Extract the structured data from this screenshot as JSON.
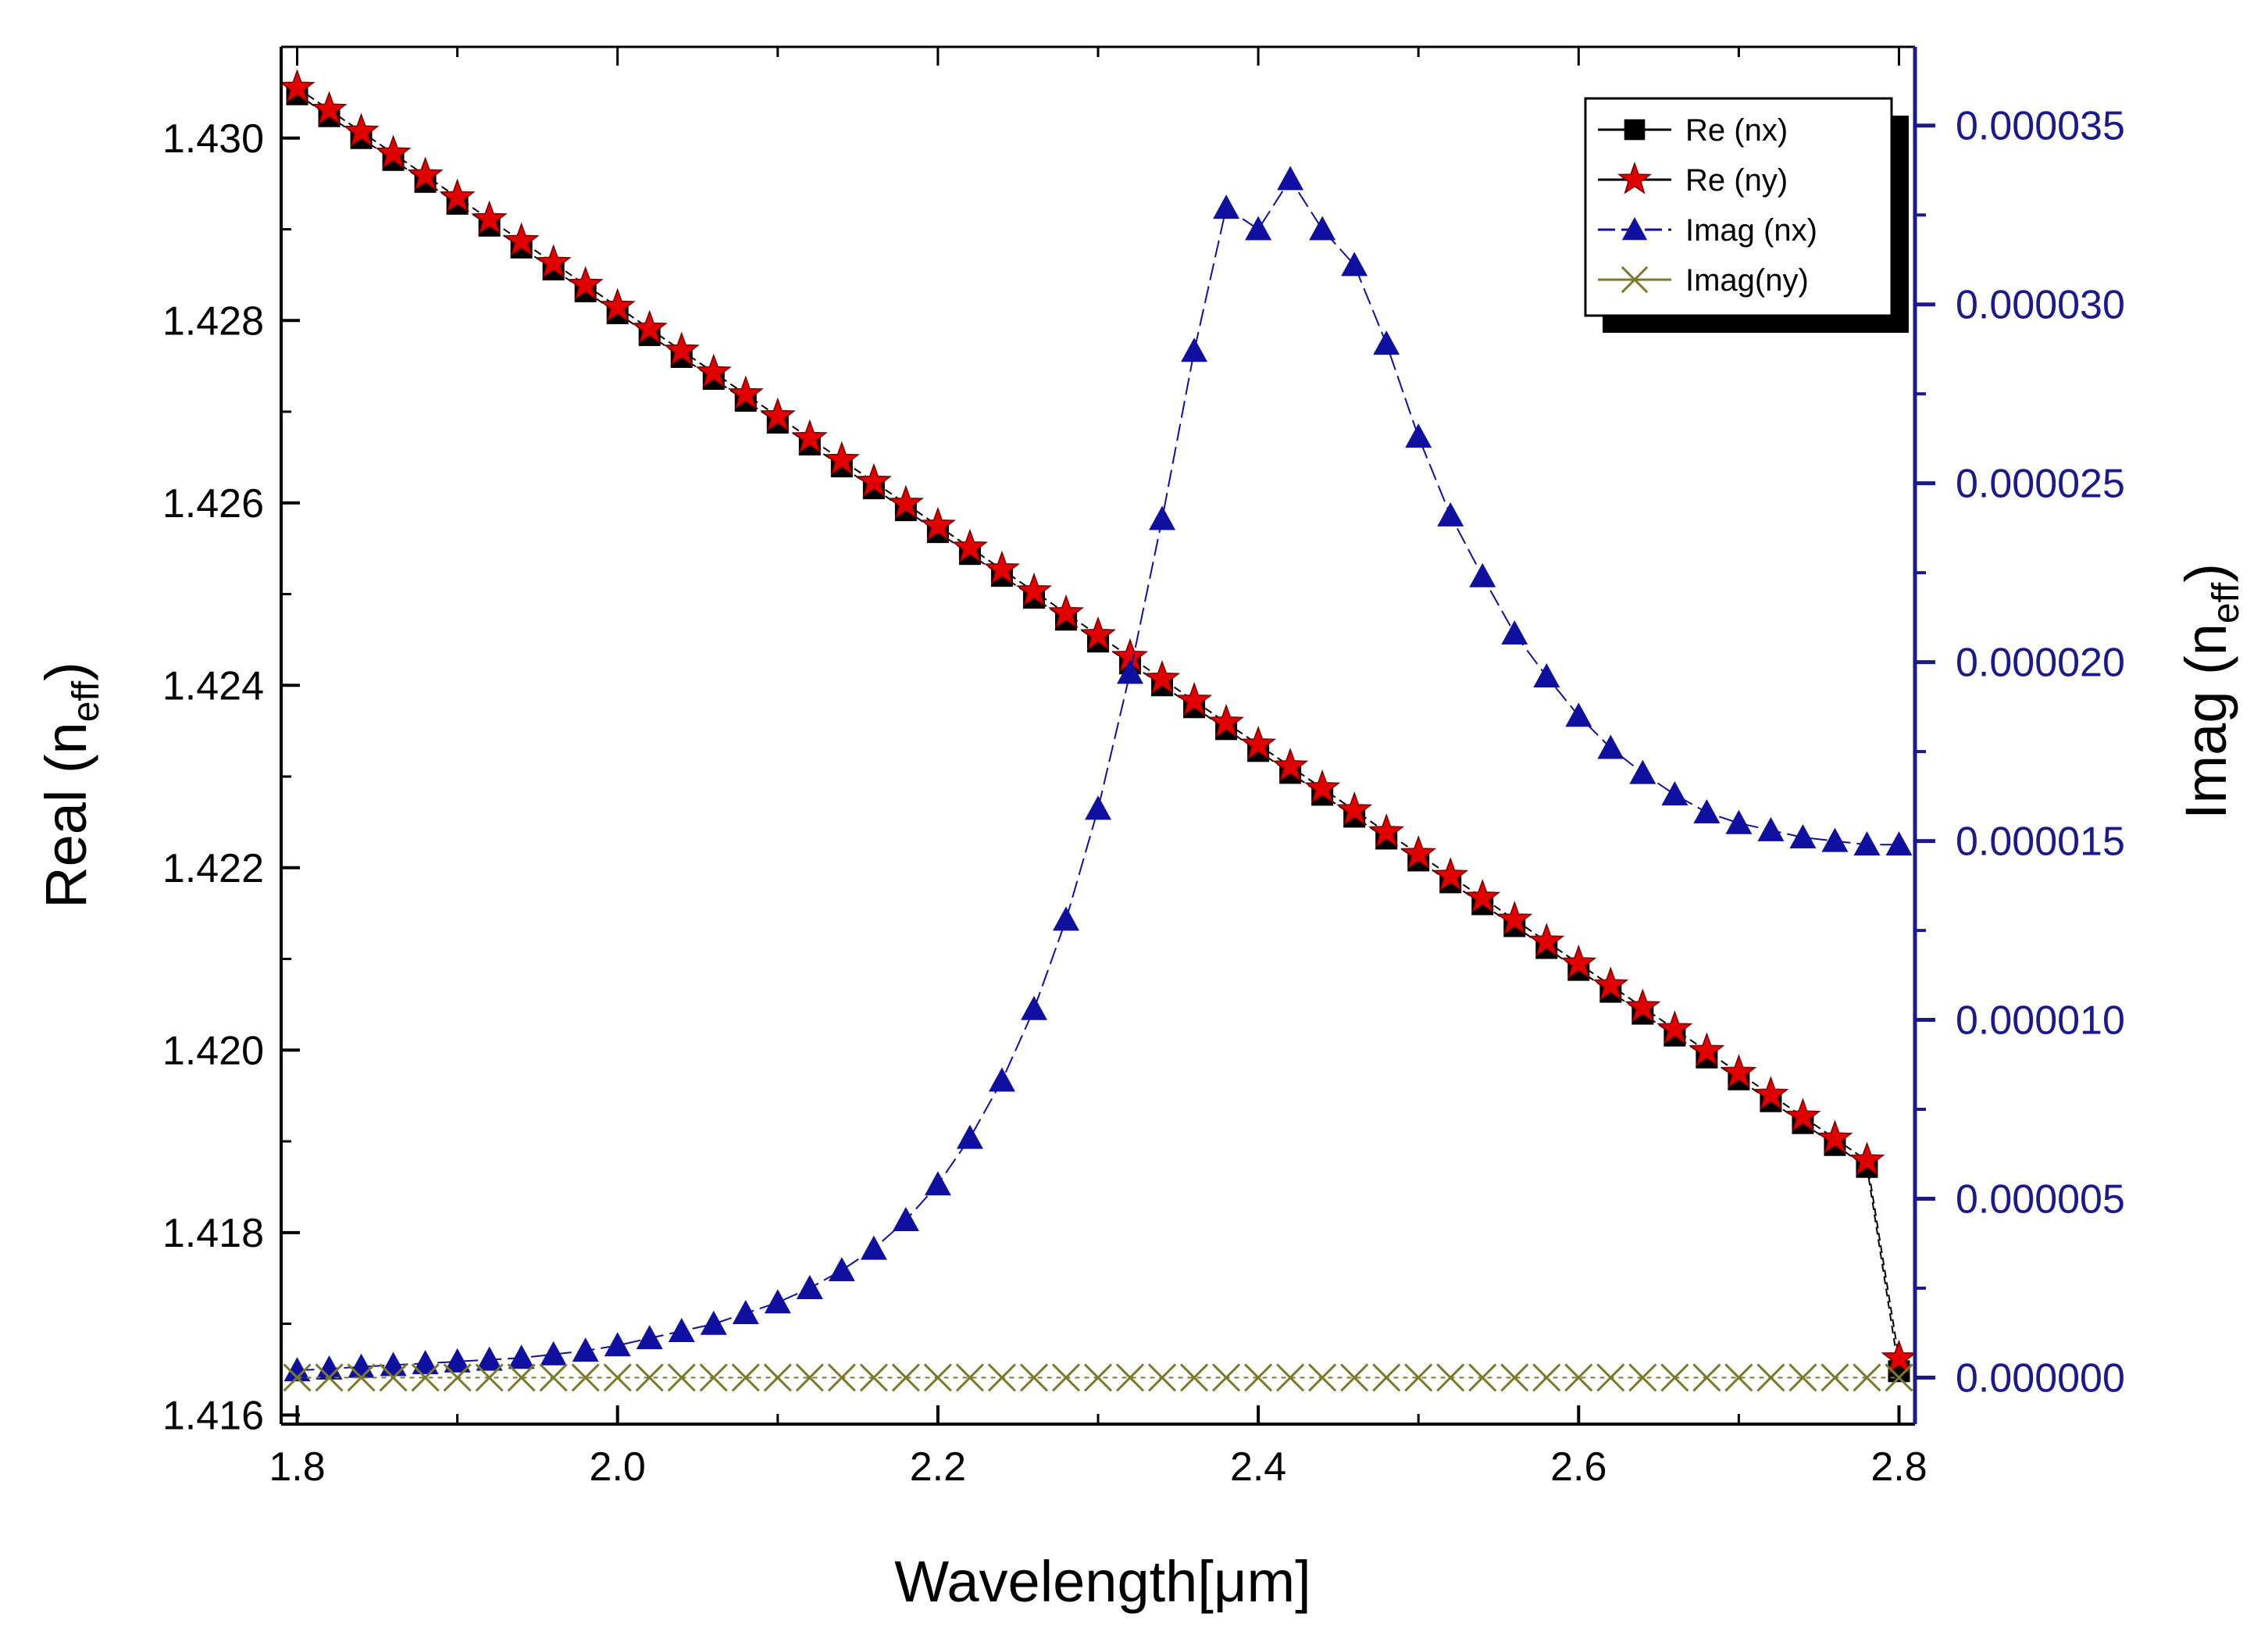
{
  "chart_data": {
    "type": "line",
    "x": [
      1.8,
      1.82,
      1.84,
      1.86,
      1.88,
      1.9,
      1.92,
      1.94,
      1.96,
      1.98,
      2.0,
      2.02,
      2.04,
      2.06,
      2.08,
      2.1,
      2.12,
      2.14,
      2.16,
      2.18,
      2.2,
      2.22,
      2.24,
      2.26,
      2.28,
      2.3,
      2.32,
      2.34,
      2.36,
      2.38,
      2.4,
      2.42,
      2.44,
      2.46,
      2.48,
      2.5,
      2.52,
      2.54,
      2.56,
      2.58,
      2.6,
      2.62,
      2.64,
      2.66,
      2.68,
      2.7,
      2.72,
      2.74,
      2.76,
      2.78,
      2.8
    ],
    "xlabel": "Wavelength[μm]",
    "xlim": [
      1.79,
      2.81
    ],
    "xticks": [
      "1.8",
      "2.0",
      "2.2",
      "2.4",
      "2.6",
      "2.8"
    ],
    "xtick_values": [
      1.8,
      2.0,
      2.2,
      2.4,
      2.6,
      2.8
    ],
    "left_axis": {
      "label_main": "Real (n",
      "label_sub": "eff",
      "label_close": ")",
      "ylim": [
        1.4159,
        1.431
      ],
      "ticks": [
        "1.416",
        "1.418",
        "1.420",
        "1.422",
        "1.424",
        "1.426",
        "1.428",
        "1.430"
      ],
      "tick_values": [
        1.416,
        1.418,
        1.42,
        1.422,
        1.424,
        1.426,
        1.428,
        1.43
      ]
    },
    "right_axis": {
      "label_main": "Imag (n",
      "label_sub": "eff",
      "label_close": ")",
      "ylim": [
        -1.3e-06,
        3.72e-05
      ],
      "ticks": [
        "0.000000",
        "0.000005",
        "0.000010",
        "0.000015",
        "0.000020",
        "0.000025",
        "0.000030",
        "0.000035"
      ],
      "tick_values": [
        0,
        5e-06,
        1e-05,
        1.5e-05,
        2e-05,
        2.5e-05,
        3e-05,
        3.5e-05
      ],
      "color": "#1a1a8c"
    },
    "series": [
      {
        "name": "Re (nx)",
        "axis": "left",
        "marker": "square",
        "color": "#000000",
        "values": [
          1.43048,
          1.43024,
          1.43,
          1.42976,
          1.42952,
          1.42928,
          1.42904,
          1.4288,
          1.42856,
          1.42832,
          1.42808,
          1.42784,
          1.4276,
          1.42736,
          1.42712,
          1.42688,
          1.42664,
          1.4264,
          1.42616,
          1.42592,
          1.42568,
          1.42544,
          1.4252,
          1.42496,
          1.42472,
          1.42448,
          1.42424,
          1.424,
          1.42376,
          1.42352,
          1.42328,
          1.42304,
          1.4228,
          1.42256,
          1.42232,
          1.42208,
          1.42184,
          1.4216,
          1.42136,
          1.42112,
          1.42088,
          1.42064,
          1.4204,
          1.42016,
          1.41992,
          1.41968,
          1.41944,
          1.4192,
          1.41896,
          1.41872,
          1.41648
        ]
      },
      {
        "name": "Re (ny)",
        "axis": "left",
        "marker": "star",
        "color": "#e00000",
        "values": [
          1.43055,
          1.43031,
          1.43007,
          1.42983,
          1.42959,
          1.42935,
          1.42911,
          1.42887,
          1.42863,
          1.42839,
          1.42815,
          1.42791,
          1.42767,
          1.42743,
          1.42719,
          1.42695,
          1.42671,
          1.42647,
          1.42623,
          1.42599,
          1.42575,
          1.42551,
          1.42527,
          1.42503,
          1.42479,
          1.42455,
          1.42431,
          1.42407,
          1.42383,
          1.42359,
          1.42335,
          1.42311,
          1.42287,
          1.42263,
          1.42239,
          1.42215,
          1.42191,
          1.42167,
          1.42143,
          1.42119,
          1.42095,
          1.42071,
          1.42047,
          1.42023,
          1.41999,
          1.41975,
          1.41951,
          1.41927,
          1.41903,
          1.41879,
          1.41662
        ]
      },
      {
        "name": "Imag (nx)",
        "axis": "right",
        "marker": "triangle",
        "color": "#1010a0",
        "values": [
          2e-07,
          2.5e-07,
          3e-07,
          3.5e-07,
          4e-07,
          4.5e-07,
          5e-07,
          5.5e-07,
          6.5e-07,
          7.5e-07,
          9e-07,
          1.1e-06,
          1.3e-06,
          1.5e-06,
          1.8e-06,
          2.1e-06,
          2.5e-06,
          3e-06,
          3.6e-06,
          4.4e-06,
          5.4e-06,
          6.7e-06,
          8.3e-06,
          1.03e-05,
          1.28e-05,
          1.59e-05,
          1.97e-05,
          2.4e-05,
          2.87e-05,
          3.27e-05,
          3.21e-05,
          3.35e-05,
          3.21e-05,
          3.11e-05,
          2.89e-05,
          2.63e-05,
          2.41e-05,
          2.24e-05,
          2.08e-05,
          1.96e-05,
          1.85e-05,
          1.76e-05,
          1.69e-05,
          1.63e-05,
          1.58e-05,
          1.55e-05,
          1.53e-05,
          1.51e-05,
          1.5e-05,
          1.49e-05,
          1.49e-05
        ]
      },
      {
        "name": "Imag(ny)",
        "axis": "right",
        "marker": "x",
        "color": "#7a7a2a",
        "values": [
          0,
          0,
          0,
          0,
          0,
          0,
          0,
          0,
          0,
          0,
          0,
          0,
          0,
          0,
          0,
          0,
          0,
          0,
          0,
          0,
          0,
          0,
          0,
          0,
          0,
          0,
          0,
          0,
          0,
          0,
          0,
          0,
          0,
          0,
          0,
          0,
          0,
          0,
          0,
          0,
          0,
          0,
          0,
          0,
          0,
          0,
          0,
          0,
          0,
          0,
          0
        ]
      }
    ],
    "legend": [
      "Re (nx)",
      "Re (ny)",
      "Imag (nx)",
      "Imag(ny)"
    ],
    "legend_position": "top-right"
  }
}
